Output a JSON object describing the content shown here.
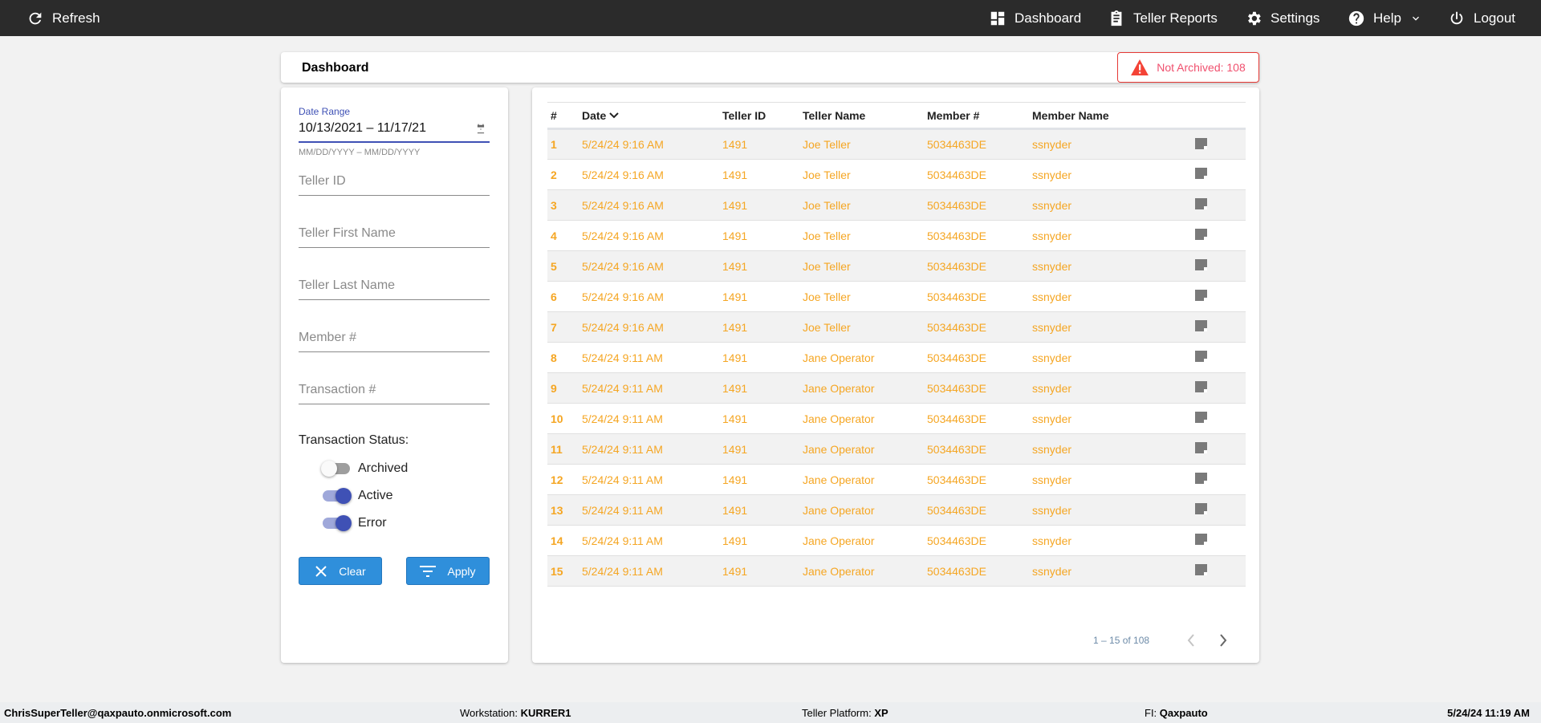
{
  "nav": {
    "refresh": "Refresh",
    "dashboard": "Dashboard",
    "teller_reports": "Teller Reports",
    "settings": "Settings",
    "help": "Help",
    "logout": "Logout"
  },
  "header": {
    "title": "Dashboard",
    "badge": "Not Archived: 108",
    "badge_color": "#e53935"
  },
  "filters": {
    "date_label": "Date Range",
    "date_value": "10/13/2021 – 11/17/21",
    "date_hint": "MM/DD/YYYY – MM/DD/YYYY",
    "teller_id": "Teller ID",
    "first_name": "Teller First Name",
    "last_name": "Teller Last Name",
    "member": "Member #",
    "transaction": "Transaction #",
    "status_label": "Transaction Status:",
    "statuses": [
      {
        "label": "Archived",
        "on": false
      },
      {
        "label": "Active",
        "on": true
      },
      {
        "label": "Error",
        "on": true
      }
    ],
    "clear": "Clear",
    "apply": "Apply"
  },
  "table": {
    "columns": [
      "#",
      "Date",
      "Teller ID",
      "Teller Name",
      "Member #",
      "Member Name"
    ],
    "rows": [
      [
        "1",
        "5/24/24 9:16 AM",
        "1491",
        "Joe Teller",
        "5034463DE",
        "ssnyder"
      ],
      [
        "2",
        "5/24/24 9:16 AM",
        "1491",
        "Joe Teller",
        "5034463DE",
        "ssnyder"
      ],
      [
        "3",
        "5/24/24 9:16 AM",
        "1491",
        "Joe Teller",
        "5034463DE",
        "ssnyder"
      ],
      [
        "4",
        "5/24/24 9:16 AM",
        "1491",
        "Joe Teller",
        "5034463DE",
        "ssnyder"
      ],
      [
        "5",
        "5/24/24 9:16 AM",
        "1491",
        "Joe Teller",
        "5034463DE",
        "ssnyder"
      ],
      [
        "6",
        "5/24/24 9:16 AM",
        "1491",
        "Joe Teller",
        "5034463DE",
        "ssnyder"
      ],
      [
        "7",
        "5/24/24 9:16 AM",
        "1491",
        "Joe Teller",
        "5034463DE",
        "ssnyder"
      ],
      [
        "8",
        "5/24/24 9:11 AM",
        "1491",
        "Jane Operator",
        "5034463DE",
        "ssnyder"
      ],
      [
        "9",
        "5/24/24 9:11 AM",
        "1491",
        "Jane Operator",
        "5034463DE",
        "ssnyder"
      ],
      [
        "10",
        "5/24/24 9:11 AM",
        "1491",
        "Jane Operator",
        "5034463DE",
        "ssnyder"
      ],
      [
        "11",
        "5/24/24 9:11 AM",
        "1491",
        "Jane Operator",
        "5034463DE",
        "ssnyder"
      ],
      [
        "12",
        "5/24/24 9:11 AM",
        "1491",
        "Jane Operator",
        "5034463DE",
        "ssnyder"
      ],
      [
        "13",
        "5/24/24 9:11 AM",
        "1491",
        "Jane Operator",
        "5034463DE",
        "ssnyder"
      ],
      [
        "14",
        "5/24/24 9:11 AM",
        "1491",
        "Jane Operator",
        "5034463DE",
        "ssnyder"
      ],
      [
        "15",
        "5/24/24 9:11 AM",
        "1491",
        "Jane Operator",
        "5034463DE",
        "ssnyder"
      ]
    ],
    "row_text_color": "#f5a623",
    "pagination": "1 – 15 of 108"
  },
  "footer": {
    "user": "ChrisSuperTeller@qaxpauto.onmicrosoft.com",
    "workstation_label": "Workstation:",
    "workstation": "KURRER1",
    "platform_label": "Teller Platform:",
    "platform": "XP",
    "fi_label": "FI:",
    "fi": "Qaxpauto",
    "datetime": "5/24/24 11:19 AM"
  }
}
